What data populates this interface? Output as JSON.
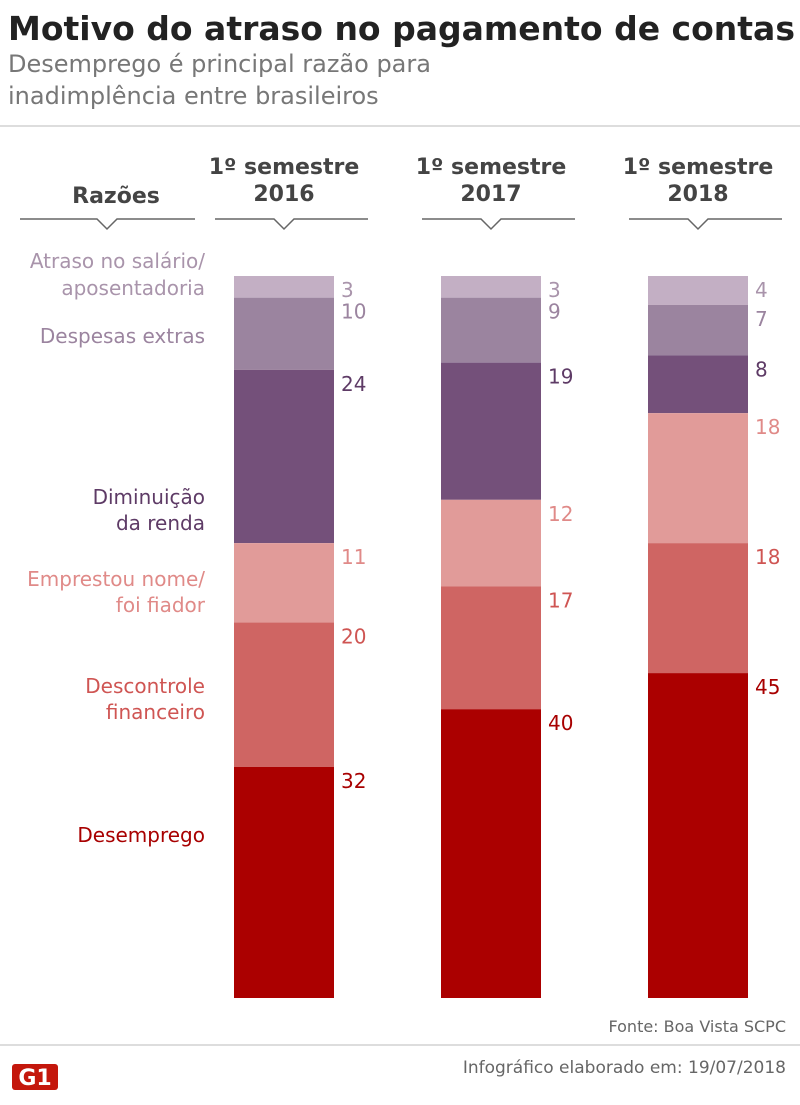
{
  "title": "Motivo do atraso no pagamento de contas",
  "subtitle_lines": [
    "Desemprego é principal razão para",
    "inadimplência entre brasileiros"
  ],
  "source": "Fonte: Boa Vista SCPC",
  "footer": "Infográfico elaborado em: 19/07/2018",
  "logo": "G1",
  "chart_data": {
    "type": "bar",
    "stacked": true,
    "ylim": [
      0,
      100
    ],
    "category_header": "Razões",
    "categories": [
      {
        "label_lines": [
          "1º semestre",
          "2016"
        ]
      },
      {
        "label_lines": [
          "1º semestre",
          "2017"
        ]
      },
      {
        "label_lines": [
          "1º semestre",
          "2018"
        ]
      }
    ],
    "series": [
      {
        "name": "Atraso no salário/ aposentadoria",
        "label_lines": [
          "Atraso no salário/",
          "aposentadoria"
        ],
        "color": "#c3afc4",
        "label_color": "#a994ab",
        "values": [
          3,
          3,
          4
        ]
      },
      {
        "name": "Despesas extras",
        "label_lines": [
          "Despesas extras"
        ],
        "color": "#9b849f",
        "label_color": "#9b849f",
        "values": [
          10,
          9,
          7
        ]
      },
      {
        "name": "Diminuição da renda",
        "label_lines": [
          "Diminuição",
          "da renda"
        ],
        "color": "#74507a",
        "label_color": "#5e3b66",
        "values": [
          24,
          19,
          8
        ]
      },
      {
        "name": "Emprestou nome/ foi fiador",
        "label_lines": [
          "Emprestou nome/",
          "foi fiador"
        ],
        "color": "#e19b99",
        "label_color": "#e08a88",
        "values": [
          11,
          12,
          18
        ]
      },
      {
        "name": "Descontrole financeiro",
        "label_lines": [
          "Descontrole",
          "financeiro"
        ],
        "color": "#cf6563",
        "label_color": "#cf5553",
        "values": [
          20,
          17,
          18
        ]
      },
      {
        "name": "Desemprego",
        "label_lines": [
          "Desemprego"
        ],
        "color": "#ab0000",
        "label_color": "#a80000",
        "values": [
          32,
          40,
          45
        ]
      }
    ]
  }
}
